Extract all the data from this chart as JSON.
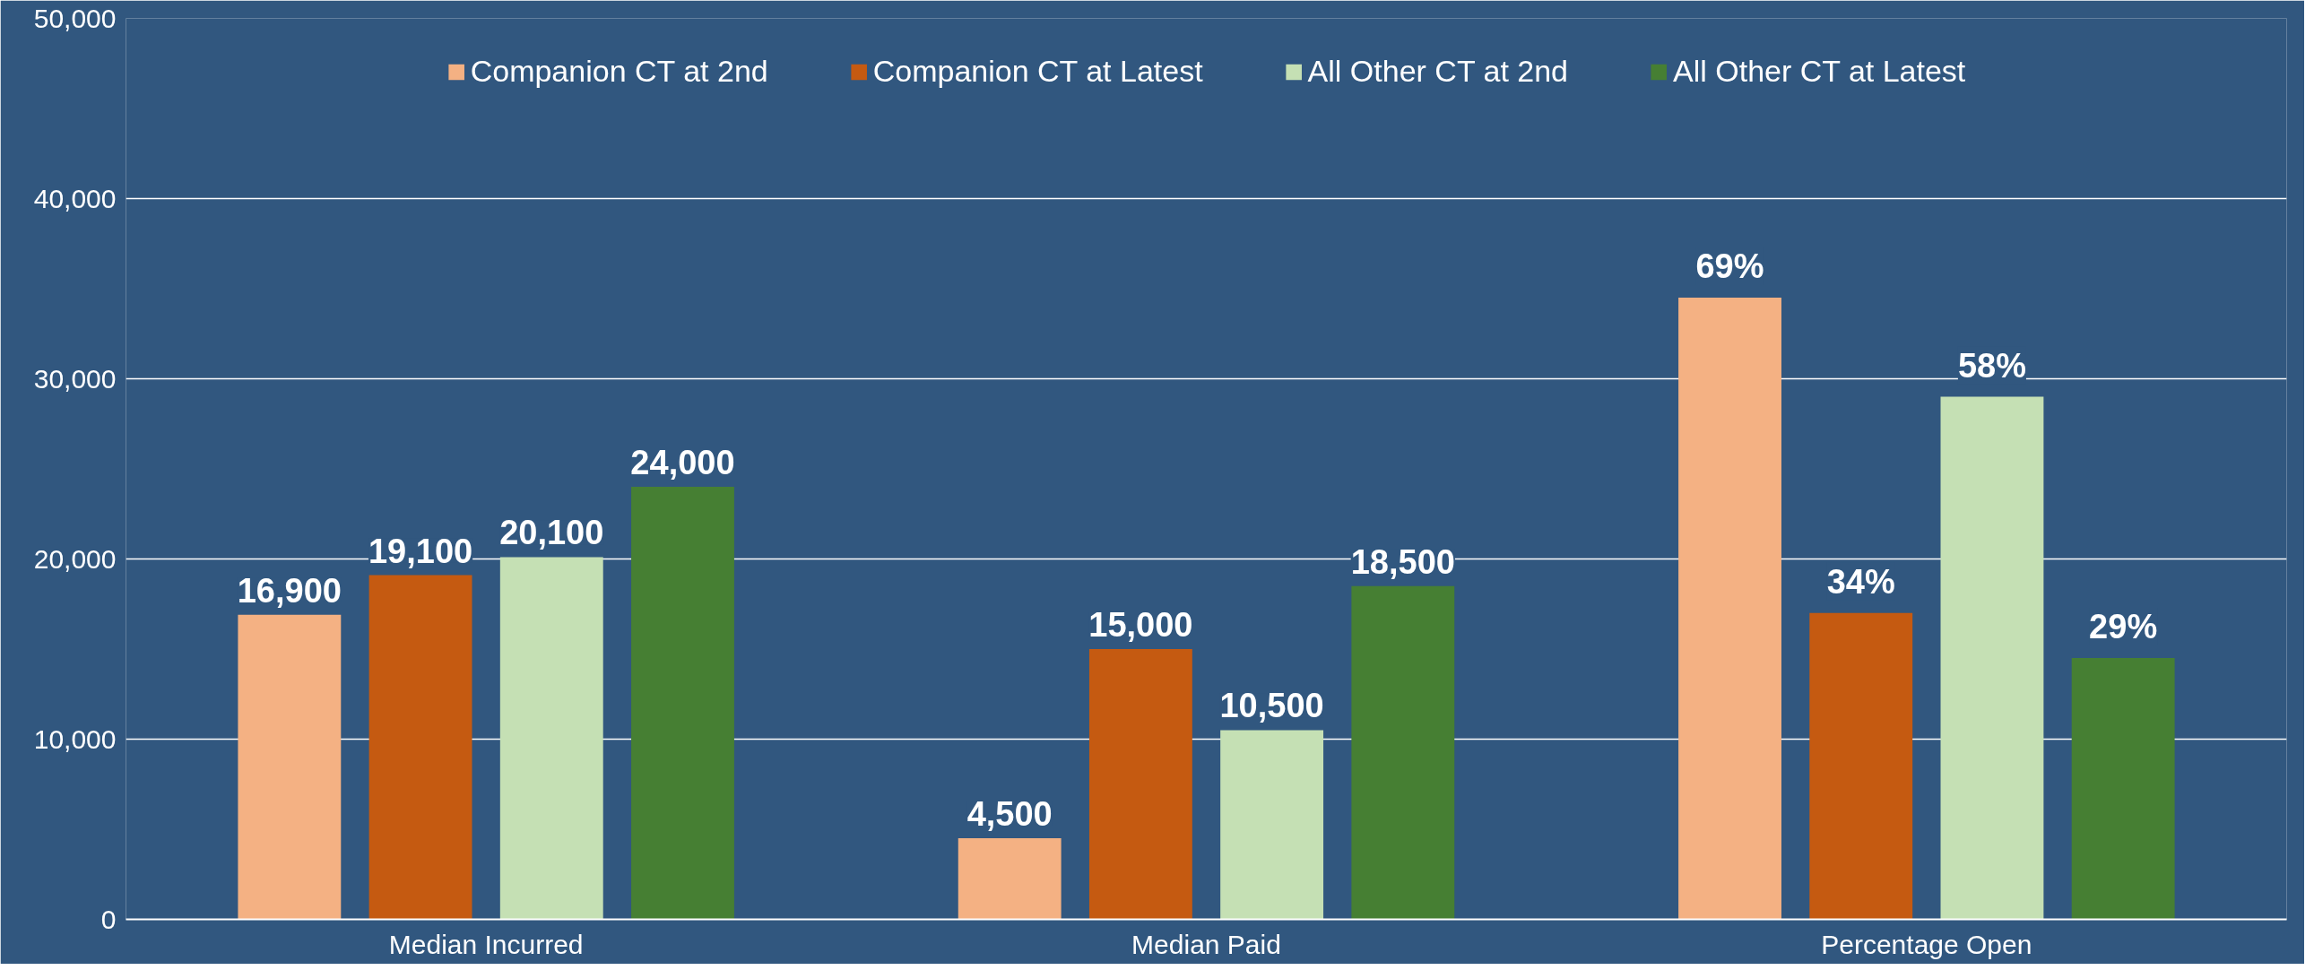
{
  "chart_data": {
    "type": "bar",
    "categories": [
      "Median Incurred",
      "Median Paid",
      "Percentage Open"
    ],
    "series": [
      {
        "name": "Companion CT at 2nd",
        "color": "#f4b183",
        "values": [
          16900,
          4500,
          null
        ],
        "value_labels": [
          "16,900",
          "4,500",
          null
        ]
      },
      {
        "name": "Companion CT at Latest",
        "color": "#c55a11",
        "values": [
          19100,
          15000,
          null
        ],
        "value_labels": [
          "19,100",
          "15,000",
          null
        ]
      },
      {
        "name": "All Other CT at 2nd",
        "color": "#c5e0b4",
        "values": [
          20100,
          10500,
          null
        ],
        "value_labels": [
          "20,100",
          "10,500",
          null
        ]
      },
      {
        "name": "All Other CT at Latest",
        "color": "#467f33",
        "values": [
          24000,
          18500,
          null
        ],
        "value_labels": [
          "24,000",
          "18,500",
          null
        ]
      },
      {
        "color": "#f4b183",
        "axis": "y2",
        "values": [
          null,
          null,
          69
        ],
        "value_labels": [
          null,
          null,
          "69%"
        ]
      },
      {
        "color": "#c55a11",
        "axis": "y2",
        "values": [
          null,
          null,
          34
        ],
        "value_labels": [
          null,
          null,
          "34%"
        ]
      },
      {
        "color": "#c5e0b4",
        "axis": "y2",
        "values": [
          null,
          null,
          58
        ],
        "value_labels": [
          null,
          null,
          "58%"
        ]
      },
      {
        "color": "#467f33",
        "axis": "y2",
        "values": [
          null,
          null,
          29
        ],
        "value_labels": [
          null,
          null,
          "29%"
        ]
      }
    ],
    "ylim": [
      0,
      50000
    ],
    "yticks": [
      {
        "value": 0,
        "label": "0"
      },
      {
        "value": 10000,
        "label": "10,000"
      },
      {
        "value": 20000,
        "label": "20,000"
      },
      {
        "value": 30000,
        "label": "30,000"
      },
      {
        "value": 40000,
        "label": "40,000"
      },
      {
        "value": 50000,
        "label": "50,000"
      }
    ],
    "y2lim": [
      0,
      100
    ],
    "grid": "y",
    "legend": "top"
  }
}
